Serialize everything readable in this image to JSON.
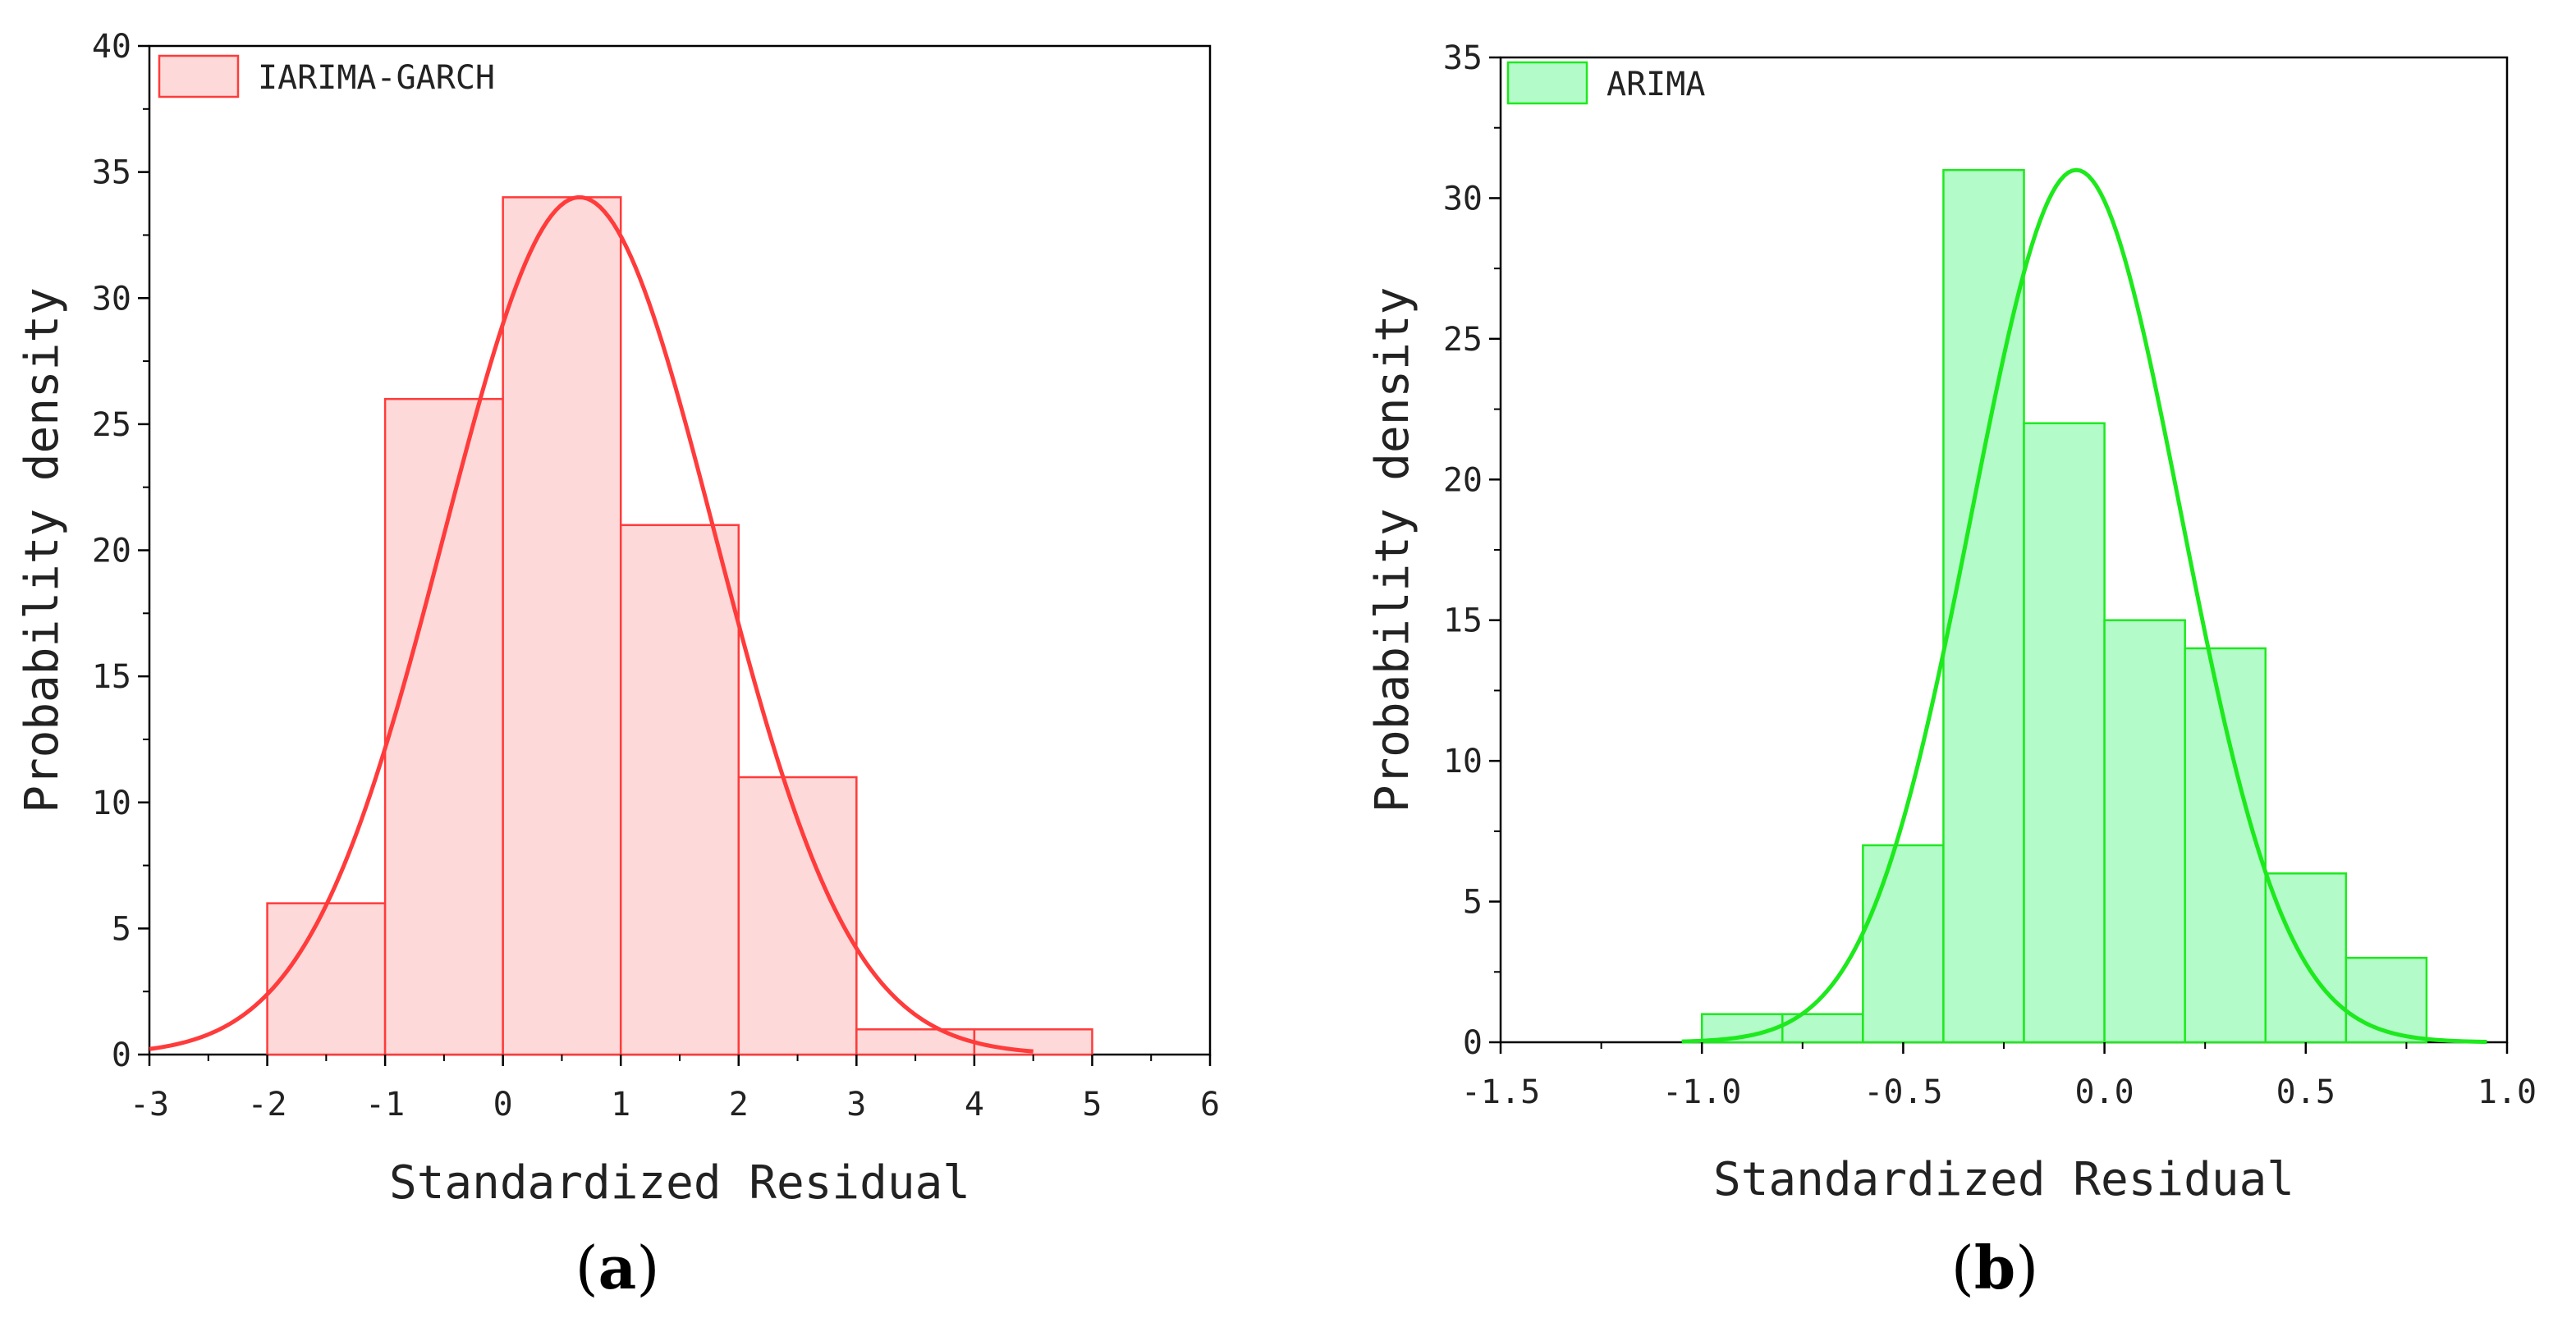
{
  "chart_data": [
    {
      "type": "bar",
      "panel_label": "(a)",
      "panel_letter": "a",
      "legend_label": "IARIMA-GARCH",
      "color": "#ff3b3b",
      "fill": "#fdd9d9",
      "xlabel": "Standardized Residual",
      "ylabel": "Probability density",
      "xlim": [
        -3,
        6
      ],
      "ylim": [
        0,
        40
      ],
      "xticks": [
        -3,
        -2,
        -1,
        0,
        1,
        2,
        3,
        4,
        5,
        6
      ],
      "xtick_labels": [
        "-3",
        "-2",
        "-1",
        "0",
        "1",
        "2",
        "3",
        "4",
        "5",
        "6"
      ],
      "yticks": [
        0,
        5,
        10,
        15,
        20,
        25,
        30,
        35,
        40
      ],
      "ytick_labels": [
        "0",
        "5",
        "10",
        "15",
        "20",
        "25",
        "30",
        "35",
        "40"
      ],
      "bins": [
        {
          "start": -2,
          "end": -1,
          "value": 6
        },
        {
          "start": -1,
          "end": 0,
          "value": 26
        },
        {
          "start": 0,
          "end": 1,
          "value": 34
        },
        {
          "start": 1,
          "end": 2,
          "value": 21
        },
        {
          "start": 2,
          "end": 3,
          "value": 11
        },
        {
          "start": 3,
          "end": 4,
          "value": 1
        },
        {
          "start": 4,
          "end": 5,
          "value": 1
        }
      ],
      "curve": {
        "type": "normal",
        "mean": 0.65,
        "sd": 1.15,
        "peak": 34,
        "x_start": -3,
        "x_end": 4.5
      }
    },
    {
      "type": "bar",
      "panel_label": "(b)",
      "panel_letter": "b",
      "legend_label": "ARIMA",
      "color": "#1de91d",
      "fill": "#b3fcc9",
      "xlabel": "Standardized Residual",
      "ylabel": "Probability density",
      "xlim": [
        -1.5,
        1.0
      ],
      "ylim": [
        0,
        35
      ],
      "xticks": [
        -1.5,
        -1.0,
        -0.5,
        0.0,
        0.5,
        1.0
      ],
      "xtick_labels": [
        "-1.5",
        "-1.0",
        "-0.5",
        "0.0",
        "0.5",
        "1.0"
      ],
      "yticks": [
        0,
        5,
        10,
        15,
        20,
        25,
        30,
        35
      ],
      "ytick_labels": [
        "0",
        "5",
        "10",
        "15",
        "20",
        "25",
        "30",
        "35"
      ],
      "bins": [
        {
          "start": -1.0,
          "end": -0.8,
          "value": 1
        },
        {
          "start": -0.8,
          "end": -0.6,
          "value": 1
        },
        {
          "start": -0.6,
          "end": -0.4,
          "value": 7
        },
        {
          "start": -0.4,
          "end": -0.2,
          "value": 31
        },
        {
          "start": -0.2,
          "end": 0.0,
          "value": 22
        },
        {
          "start": 0.0,
          "end": 0.2,
          "value": 15
        },
        {
          "start": 0.2,
          "end": 0.4,
          "value": 14
        },
        {
          "start": 0.4,
          "end": 0.6,
          "value": 6
        },
        {
          "start": 0.6,
          "end": 0.8,
          "value": 3
        }
      ],
      "curve": {
        "type": "normal",
        "mean": -0.07,
        "sd": 0.26,
        "peak": 31,
        "x_start": -1.05,
        "x_end": 0.95
      }
    }
  ]
}
